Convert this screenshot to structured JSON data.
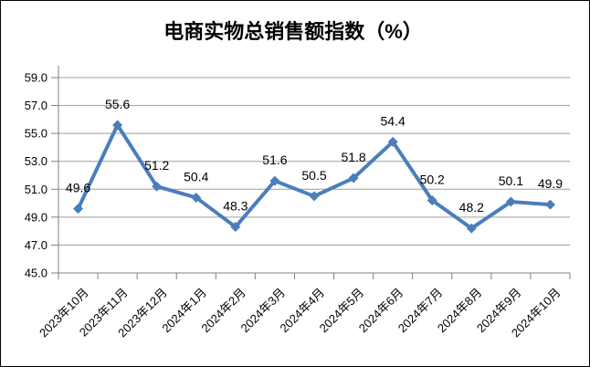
{
  "title": "电商实物总销售额指数（%）",
  "chart_data": {
    "type": "line",
    "title": "电商实物总销售额指数（%）",
    "categories": [
      "2023年10月",
      "2023年11月",
      "2023年12月",
      "2024年1月",
      "2024年2月",
      "2024年3月",
      "2024年4月",
      "2024年5月",
      "2024年6月",
      "2024年7月",
      "2024年8月",
      "2024年9月",
      "2024年10月"
    ],
    "series": [
      {
        "name": "电商实物总销售额指数",
        "values": [
          49.6,
          55.6,
          51.2,
          50.4,
          48.3,
          51.6,
          50.5,
          51.8,
          54.4,
          50.2,
          48.2,
          50.1,
          49.9
        ]
      }
    ],
    "data_labels": [
      "49.6",
      "55.6",
      "51.2",
      "50.4",
      "48.3",
      "51.6",
      "50.5",
      "51.8",
      "54.4",
      "50.2",
      "48.2",
      "50.1",
      "49.9"
    ],
    "ylim": [
      45.0,
      59.0
    ],
    "ytick_interval": 2.0,
    "ytick_labels": [
      "45.0",
      "47.0",
      "49.0",
      "51.0",
      "53.0",
      "55.0",
      "57.0",
      "59.0"
    ],
    "xlabel": "",
    "ylabel": "",
    "grid": "horizontal",
    "legend_position": "none",
    "marker": "diamond",
    "x_label_rotation_deg": 45,
    "colors": {
      "line": "#4a7ebb",
      "marker": "#4a7ebb",
      "gridline": "#9d9d9d",
      "axis": "#808080",
      "text": "#000000",
      "background": "#ffffff",
      "border": "#000000"
    }
  }
}
